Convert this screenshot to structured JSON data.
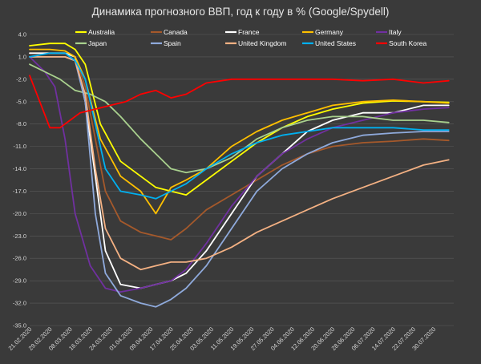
{
  "chart_data": {
    "type": "line",
    "title": "Динамика прогнозного ВВП, год к году в % (Google/Spydell)",
    "xlabel": "",
    "ylabel": "",
    "grid": true,
    "legend_position": "top",
    "ylim": [
      -35,
      4
    ],
    "yticks": [
      4.0,
      1.0,
      -2.0,
      -5.0,
      -8.0,
      -11.0,
      -14.0,
      -17.0,
      -20.0,
      -23.0,
      -26.0,
      -29.0,
      -32.0,
      -35.0
    ],
    "ytick_labels": [
      "4.0",
      "1.0",
      "-2.0",
      "-5.0",
      "-8.0",
      "-11.0",
      "-14.0",
      "-17.0",
      "-20.0",
      "-23.0",
      "-26.0",
      "-29.0",
      "-32.0",
      "-35.0"
    ],
    "xlim": [
      0,
      168
    ],
    "xticks": [
      0,
      8,
      16,
      24,
      32,
      40,
      48,
      56,
      64,
      72,
      80,
      88,
      96,
      104,
      112,
      120,
      128,
      136,
      144,
      152,
      160
    ],
    "xtick_labels": [
      "21.02.2020",
      "29.02.2020",
      "08.03.2020",
      "16.03.2020",
      "24.03.2020",
      "01.04.2020",
      "09.04.2020",
      "17.04.2020",
      "25.04.2020",
      "03.05.2020",
      "11.05.2020",
      "19.05.2020",
      "27.05.2020",
      "04.06.2020",
      "12.06.2020",
      "20.06.2020",
      "28.06.2020",
      "06.07.2020",
      "14.07.2020",
      "22.07.2020",
      "30.07.2020"
    ],
    "series": [
      {
        "name": "Australia",
        "color": "#ffff00",
        "x": [
          0,
          8,
          14,
          18,
          22,
          28,
          36,
          44,
          50,
          56,
          62,
          70,
          80,
          90,
          100,
          110,
          120,
          132,
          144,
          156,
          166
        ],
        "y": [
          2.5,
          2.8,
          2.8,
          2.0,
          0.0,
          -8.0,
          -13.0,
          -15.0,
          -16.5,
          -17.0,
          -17.5,
          -15.5,
          -13.0,
          -10.5,
          -8.5,
          -7.0,
          -6.0,
          -5.2,
          -4.9,
          -5.0,
          -5.1
        ]
      },
      {
        "name": "Canada",
        "color": "#a5592b",
        "x": [
          0,
          8,
          14,
          18,
          22,
          26,
          30,
          36,
          44,
          50,
          56,
          62,
          70,
          80,
          90,
          100,
          110,
          120,
          132,
          144,
          156,
          166
        ],
        "y": [
          1.5,
          1.5,
          1.5,
          1.0,
          -3.0,
          -10.0,
          -17.0,
          -21.0,
          -22.5,
          -23.0,
          -23.5,
          -22.0,
          -19.5,
          -17.5,
          -15.5,
          -13.5,
          -12.0,
          -11.0,
          -10.5,
          -10.3,
          -10.0,
          -10.2
        ]
      },
      {
        "name": "France",
        "color": "#ffffff",
        "x": [
          0,
          8,
          14,
          18,
          22,
          26,
          30,
          36,
          44,
          50,
          56,
          62,
          70,
          80,
          90,
          100,
          110,
          120,
          132,
          144,
          156,
          166
        ],
        "y": [
          1.5,
          1.5,
          1.5,
          1.0,
          -5.0,
          -15.0,
          -25.0,
          -29.5,
          -30.0,
          -29.5,
          -29.0,
          -28.0,
          -25.0,
          -20.0,
          -15.0,
          -12.0,
          -9.0,
          -7.5,
          -6.5,
          -6.5,
          -5.5,
          -5.5
        ]
      },
      {
        "name": "Germany",
        "color": "#ffc000",
        "x": [
          0,
          8,
          14,
          18,
          22,
          28,
          36,
          44,
          50,
          56,
          62,
          70,
          80,
          90,
          100,
          110,
          120,
          132,
          144,
          156,
          166
        ],
        "y": [
          2.0,
          2.0,
          1.8,
          1.0,
          -2.0,
          -10.0,
          -15.0,
          -17.0,
          -20.0,
          -16.5,
          -15.5,
          -14.0,
          -11.0,
          -9.0,
          -7.5,
          -6.5,
          -5.5,
          -5.0,
          -4.8,
          -5.0,
          -5.2
        ]
      },
      {
        "name": "Italy",
        "color": "#7030a0",
        "x": [
          0,
          6,
          10,
          14,
          18,
          24,
          30,
          36,
          44,
          50,
          56,
          62,
          70,
          80,
          90,
          100,
          110,
          120,
          132,
          144,
          156,
          166
        ],
        "y": [
          1.0,
          -1.0,
          -3.0,
          -10.0,
          -20.0,
          -27.0,
          -30.0,
          -30.5,
          -30.0,
          -29.5,
          -29.0,
          -27.5,
          -24.0,
          -19.0,
          -15.0,
          -12.0,
          -10.0,
          -8.5,
          -7.5,
          -6.5,
          -6.0,
          -5.8
        ]
      },
      {
        "name": "Japan",
        "color": "#a9d18e",
        "x": [
          0,
          6,
          12,
          18,
          24,
          30,
          36,
          44,
          50,
          56,
          62,
          70,
          80,
          90,
          100,
          110,
          120,
          132,
          144,
          156,
          166
        ],
        "y": [
          0.0,
          -1.0,
          -2.0,
          -3.5,
          -4.0,
          -5.0,
          -7.0,
          -10.0,
          -12.0,
          -14.0,
          -14.5,
          -14.0,
          -12.5,
          -10.0,
          -8.5,
          -7.5,
          -7.0,
          -7.0,
          -7.5,
          -7.5,
          -7.8
        ]
      },
      {
        "name": "Spain",
        "color": "#8faadc",
        "x": [
          0,
          8,
          14,
          18,
          22,
          26,
          30,
          36,
          44,
          50,
          56,
          62,
          70,
          80,
          90,
          100,
          110,
          120,
          132,
          144,
          156,
          166
        ],
        "y": [
          1.0,
          1.0,
          1.0,
          0.5,
          -5.0,
          -20.0,
          -28.0,
          -31.0,
          -32.0,
          -32.5,
          -31.5,
          -30.0,
          -27.0,
          -22.0,
          -17.0,
          -14.0,
          -12.0,
          -10.5,
          -9.5,
          -9.2,
          -9.0,
          -9.0
        ]
      },
      {
        "name": "United Kingdom",
        "color": "#f4b183",
        "x": [
          0,
          8,
          14,
          18,
          22,
          26,
          30,
          36,
          44,
          50,
          56,
          62,
          70,
          80,
          90,
          100,
          110,
          120,
          132,
          144,
          156,
          166
        ],
        "y": [
          1.0,
          1.0,
          1.0,
          0.5,
          -4.0,
          -14.0,
          -22.0,
          -26.0,
          -27.5,
          -27.0,
          -26.5,
          -26.5,
          -26.0,
          -24.5,
          -22.5,
          -21.0,
          -19.5,
          -18.0,
          -16.5,
          -15.0,
          -13.5,
          -12.8
        ]
      },
      {
        "name": "United States",
        "color": "#00b0f0",
        "x": [
          0,
          8,
          14,
          18,
          22,
          26,
          30,
          36,
          44,
          50,
          56,
          62,
          70,
          80,
          90,
          100,
          110,
          120,
          132,
          144,
          156,
          166
        ],
        "y": [
          1.0,
          1.5,
          1.5,
          0.5,
          -2.0,
          -8.0,
          -14.0,
          -17.0,
          -17.5,
          -18.0,
          -17.0,
          -16.0,
          -14.0,
          -12.0,
          -10.5,
          -9.5,
          -9.0,
          -8.5,
          -8.5,
          -8.5,
          -8.8,
          -8.8
        ]
      },
      {
        "name": "South Korea",
        "color": "#ff0000",
        "x": [
          0,
          4,
          8,
          12,
          16,
          20,
          26,
          32,
          38,
          44,
          50,
          56,
          62,
          70,
          80,
          90,
          100,
          110,
          120,
          132,
          144,
          156,
          166
        ],
        "y": [
          -1.5,
          -5.0,
          -8.5,
          -8.5,
          -7.5,
          -6.5,
          -6.0,
          -5.5,
          -5.0,
          -4.0,
          -3.5,
          -4.5,
          -4.0,
          -2.5,
          -2.0,
          -2.0,
          -2.0,
          -2.0,
          -2.0,
          -2.2,
          -2.0,
          -2.5,
          -2.2
        ]
      }
    ]
  }
}
